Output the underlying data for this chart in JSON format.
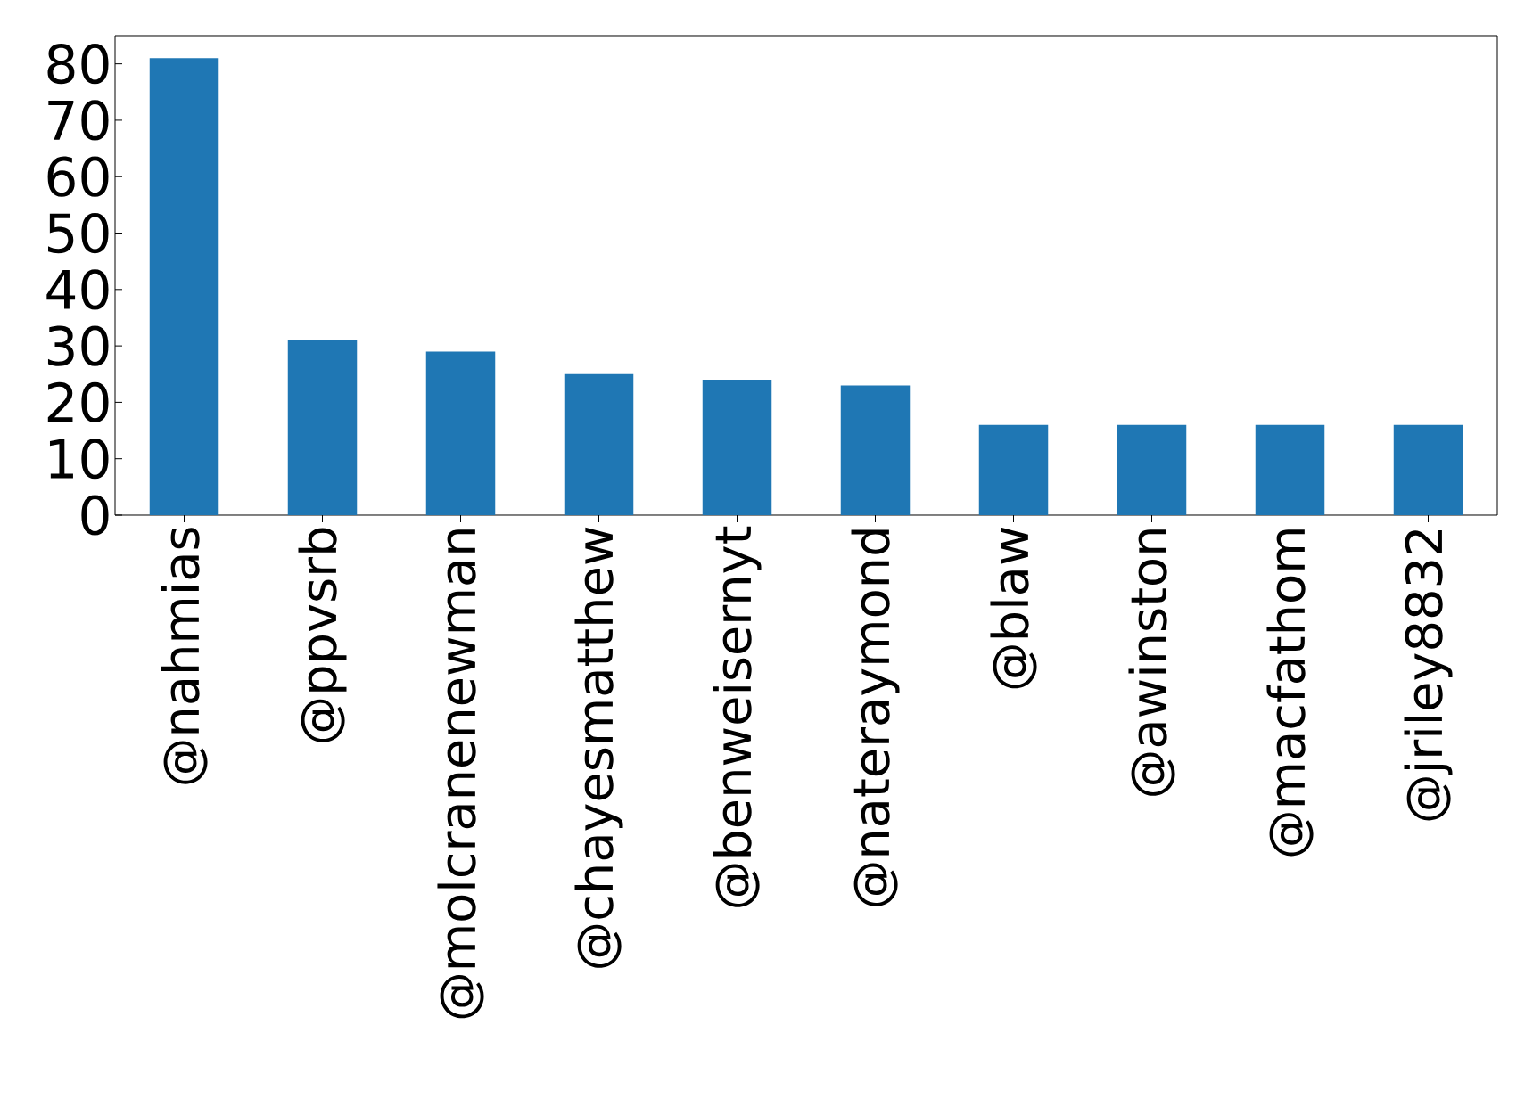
{
  "chart_data": {
    "type": "bar",
    "categories": [
      "@nahmias",
      "@ppvsrb",
      "@molcranenewman",
      "@chayesmatthew",
      "@benweisernyt",
      "@nateraymond",
      "@blaw",
      "@awinston",
      "@macfathom",
      "@jriley8832"
    ],
    "values": [
      81,
      31,
      29,
      25,
      24,
      23,
      16,
      16,
      16,
      16
    ],
    "color": "#1f77b4",
    "ylim": [
      0,
      85
    ],
    "yticks": [
      0,
      10,
      20,
      30,
      40,
      50,
      60,
      70,
      80
    ]
  }
}
